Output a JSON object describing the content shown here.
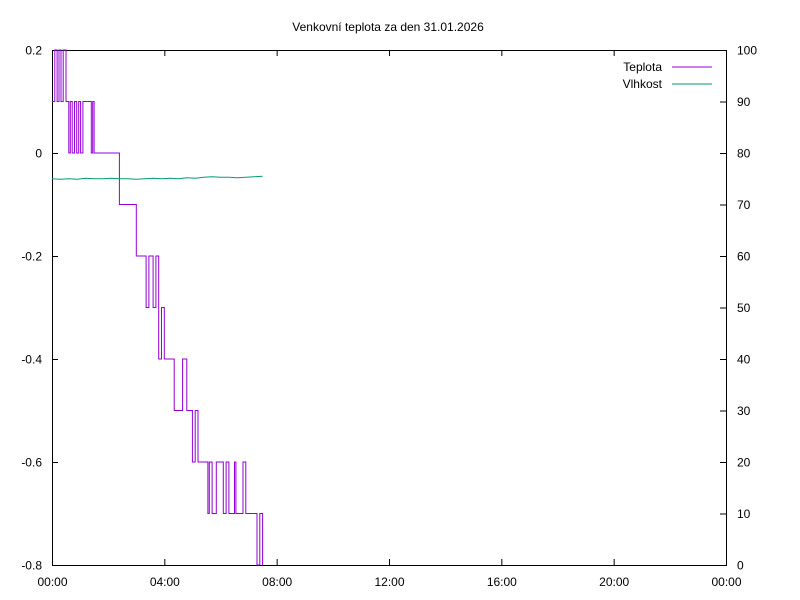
{
  "chart_data": {
    "type": "line",
    "title": "Venkovní teplota za den 31.01.2026",
    "xlabel": "",
    "ylabel": "",
    "y2label": "",
    "x_unit": "hours",
    "xlim": [
      0,
      24
    ],
    "xticks": [
      {
        "value": 0,
        "label": "00:00"
      },
      {
        "value": 4,
        "label": "04:00"
      },
      {
        "value": 8,
        "label": "08:00"
      },
      {
        "value": 12,
        "label": "12:00"
      },
      {
        "value": 16,
        "label": "16:00"
      },
      {
        "value": 20,
        "label": "20:00"
      },
      {
        "value": 24,
        "label": "00:00"
      }
    ],
    "ylim": [
      -0.8,
      0.2
    ],
    "yticks": [
      0.2,
      0,
      -0.2,
      -0.4,
      -0.6,
      -0.8
    ],
    "ytick_labels": [
      "0.2",
      "0",
      "-0.2",
      "-0.4",
      "-0.6",
      "-0.8"
    ],
    "y2lim": [
      0,
      100
    ],
    "y2ticks": [
      100,
      90,
      80,
      70,
      60,
      50,
      40,
      30,
      20,
      10,
      0
    ],
    "y2tick_labels": [
      "100",
      "90",
      "80",
      "70",
      "60",
      "50",
      "40",
      "30",
      "20",
      "10",
      "0"
    ],
    "grid": false,
    "legend_position": "top-right",
    "series": [
      {
        "name": "Teplota",
        "axis": "left",
        "color": "#9400d3",
        "step": true,
        "x": [
          0.0,
          0.1,
          0.18,
          0.25,
          0.32,
          0.4,
          0.5,
          0.6,
          0.65,
          0.72,
          0.8,
          0.88,
          0.95,
          1.02,
          1.1,
          1.18,
          1.25,
          1.4,
          1.45,
          1.5,
          2.3,
          2.4,
          2.8,
          2.9,
          3.0,
          3.1,
          3.35,
          3.45,
          3.6,
          3.7,
          3.8,
          3.9,
          4.0,
          4.1,
          4.2,
          4.35,
          4.5,
          4.65,
          4.8,
          4.85,
          5.0,
          5.1,
          5.2,
          5.3,
          5.4,
          5.55,
          5.6,
          5.7,
          5.85,
          6.0,
          6.1,
          6.2,
          6.3,
          6.5,
          6.55,
          6.7,
          6.8,
          6.9,
          7.0,
          7.1,
          7.3,
          7.4,
          7.5
        ],
        "y": [
          0.1,
          0.2,
          0.1,
          0.2,
          0.1,
          0.2,
          0.1,
          0.0,
          0.1,
          0.0,
          0.1,
          0.0,
          0.1,
          0.0,
          0.1,
          0.1,
          0.1,
          0.0,
          0.1,
          0.0,
          0.0,
          -0.1,
          -0.1,
          -0.1,
          -0.2,
          -0.2,
          -0.3,
          -0.2,
          -0.3,
          -0.2,
          -0.4,
          -0.3,
          -0.4,
          -0.4,
          -0.4,
          -0.5,
          -0.5,
          -0.4,
          -0.5,
          -0.5,
          -0.6,
          -0.5,
          -0.6,
          -0.6,
          -0.6,
          -0.7,
          -0.6,
          -0.7,
          -0.6,
          -0.6,
          -0.7,
          -0.6,
          -0.7,
          -0.6,
          -0.7,
          -0.7,
          -0.6,
          -0.7,
          -0.7,
          -0.7,
          -0.8,
          -0.7,
          -0.8
        ]
      },
      {
        "name": "Vlhkost",
        "axis": "right",
        "color": "#009e73",
        "step": false,
        "x": [
          0.0,
          0.3,
          0.6,
          0.9,
          1.2,
          1.5,
          1.8,
          2.1,
          2.4,
          2.7,
          3.0,
          3.3,
          3.6,
          3.9,
          4.2,
          4.5,
          4.8,
          5.1,
          5.4,
          5.7,
          6.0,
          6.3,
          6.6,
          6.9,
          7.2,
          7.5
        ],
        "y": [
          75.0,
          74.9,
          75.0,
          74.9,
          75.1,
          75.0,
          75.0,
          75.1,
          75.0,
          75.0,
          74.9,
          75.0,
          75.1,
          75.0,
          75.1,
          75.0,
          75.2,
          75.1,
          75.3,
          75.4,
          75.3,
          75.3,
          75.2,
          75.3,
          75.4,
          75.5
        ]
      }
    ]
  }
}
